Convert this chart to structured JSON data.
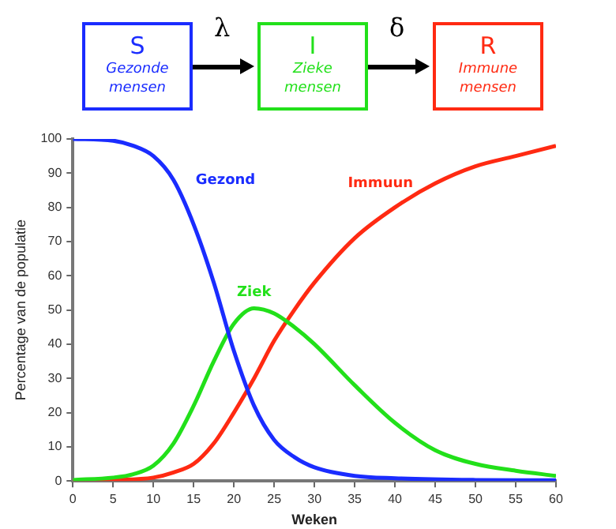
{
  "chart_data": {
    "type": "line",
    "xlabel": "Weken",
    "ylabel": "Percentage van de populatie",
    "xlim": [
      0,
      60
    ],
    "xticks": [
      0,
      5,
      10,
      15,
      20,
      25,
      30,
      35,
      40,
      45,
      50,
      55,
      60
    ],
    "ylim": [
      0,
      100
    ],
    "yticks": [
      0,
      10,
      20,
      30,
      40,
      50,
      60,
      70,
      80,
      90,
      100
    ],
    "grid": false,
    "legend": false,
    "marker": "none",
    "line_style": "solid",
    "series": [
      {
        "name": "Gezond",
        "color": "#1a2cff",
        "x": [
          0,
          5,
          7.5,
          10,
          12.5,
          15,
          17.5,
          20,
          22.5,
          25,
          27.5,
          30,
          35,
          40,
          50,
          60
        ],
        "values": [
          100,
          99.5,
          98,
          95,
          88,
          75,
          58,
          38,
          22,
          12,
          7,
          4,
          1.5,
          0.8,
          0.3,
          0.2
        ]
      },
      {
        "name": "Ziek",
        "color": "#22e01a",
        "x": [
          0,
          5,
          7.5,
          10,
          12.5,
          15,
          17.5,
          20,
          22.5,
          25,
          27.5,
          30,
          35,
          40,
          45,
          50,
          55,
          60
        ],
        "values": [
          0.3,
          1,
          2,
          4.5,
          11,
          22,
          35,
          46,
          50.5,
          49,
          45,
          40,
          28,
          17,
          9,
          5,
          3,
          1.5
        ]
      },
      {
        "name": "Immuun",
        "color": "#ff2a12",
        "x": [
          0,
          5,
          10,
          12.5,
          15,
          17.5,
          20,
          22.5,
          25,
          27.5,
          30,
          35,
          40,
          45,
          50,
          55,
          60
        ],
        "values": [
          0,
          0.3,
          1,
          2.5,
          5,
          11,
          20,
          30,
          41,
          50,
          58,
          71,
          80,
          87,
          92,
          95,
          98
        ]
      }
    ],
    "annotations": [
      "S",
      "Gezonde mensen",
      "λ",
      "I",
      "Zieke mensen",
      "δ",
      "R",
      "Immune mensen"
    ]
  }
}
